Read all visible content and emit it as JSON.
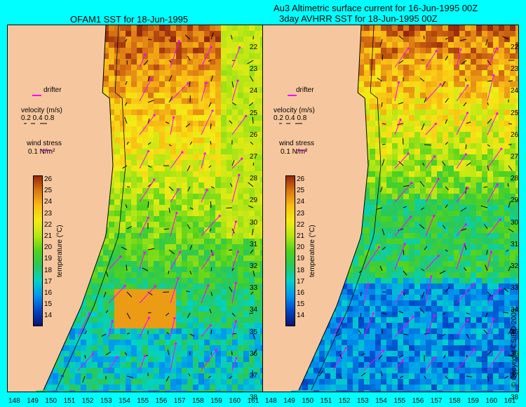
{
  "panels": [
    {
      "title_lines": [
        "OFAM1 SST for 18-Jun-1995"
      ],
      "colorbar": {
        "ticks": [
          26,
          25,
          24,
          23,
          22,
          21,
          20,
          19,
          18,
          17,
          16,
          15,
          14
        ],
        "label": "temperature (°C)"
      },
      "legend": {
        "drifter": "drifter",
        "velocity": "velocity (m/s)",
        "velocity_scale": "0.2 0.4 0.8",
        "wind": "wind stress",
        "wind_scale": "0.1 N/m²"
      }
    },
    {
      "title_lines": [
        "Au3 Altimetric surface current for 16-Jun-1995 00Z",
        "3day AVHRR SST for 18-Jun-1995 00Z"
      ],
      "colorbar": {
        "ticks": [
          26,
          25,
          24,
          23,
          22,
          21,
          20,
          19,
          18,
          17,
          16,
          15,
          14
        ],
        "label": "temperature (°C)"
      },
      "legend": {
        "drifter": "drifter",
        "velocity": "velocity (m/s)",
        "velocity_scale": "0.2 0.4 0.8",
        "wind": "wind stress",
        "wind_scale": "0.1 N/m²"
      }
    }
  ],
  "latitudes": [
    22,
    23,
    24,
    25,
    26,
    27,
    28,
    29,
    30,
    31,
    32,
    33,
    34,
    35,
    36,
    37,
    38
  ],
  "longitudes": [
    148,
    149,
    150,
    151,
    152,
    153,
    154,
    155,
    156,
    157,
    158,
    159,
    160,
    161
  ],
  "copyright": "© Copyright CSIRO 2005",
  "colors": {
    "ocean": "#00ffff",
    "land": "#f6c79e",
    "arrow": "#ff00ff"
  }
}
